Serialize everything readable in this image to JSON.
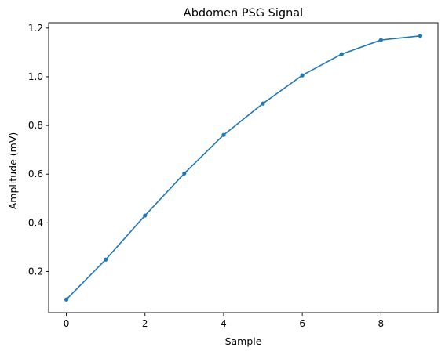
{
  "chart_data": {
    "type": "line",
    "title": "Abdomen PSG Signal",
    "xlabel": "Sample",
    "ylabel": "Amplitude (mV)",
    "x": [
      0,
      1,
      2,
      3,
      4,
      5,
      6,
      7,
      8,
      9
    ],
    "series": [
      {
        "values": [
          0.085,
          0.249,
          0.43,
          0.603,
          0.761,
          0.89,
          1.006,
          1.093,
          1.151,
          1.168
        ],
        "color": "#1f77b4",
        "marker": "circle"
      }
    ],
    "xlim": [
      -0.45,
      9.45
    ],
    "ylim": [
      0.031,
      1.222
    ],
    "xticks": [
      0,
      2,
      4,
      6,
      8
    ],
    "xtick_labels": [
      "0",
      "2",
      "4",
      "6",
      "8"
    ],
    "yticks": [
      0.2,
      0.4,
      0.6,
      0.8,
      1.0,
      1.2
    ],
    "ytick_labels": [
      "0.2",
      "0.4",
      "0.6",
      "0.8",
      "1.0",
      "1.2"
    ],
    "grid": false,
    "legend": "none"
  }
}
